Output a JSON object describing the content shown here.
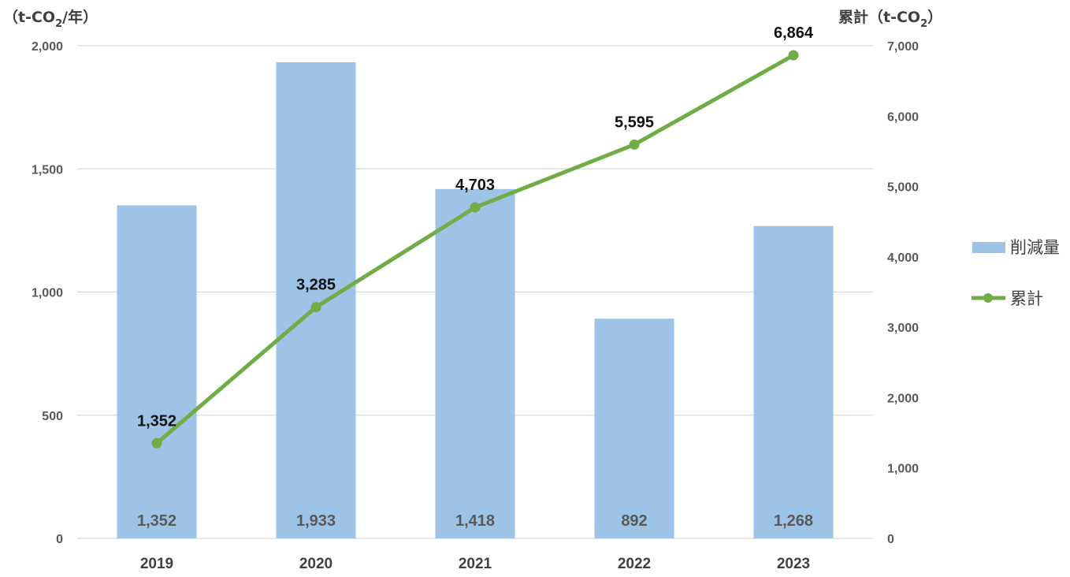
{
  "chart_data": {
    "type": "bar",
    "categories": [
      "2019",
      "2020",
      "2021",
      "2022",
      "2023"
    ],
    "series": [
      {
        "name": "削減量",
        "kind": "bar",
        "axis": "left",
        "values": [
          1352,
          1933,
          1418,
          892,
          1268
        ],
        "color": "#9DC3E6"
      },
      {
        "name": "累計",
        "kind": "line",
        "axis": "right",
        "values": [
          1352,
          3285,
          4703,
          5595,
          6864
        ],
        "color": "#70AD47"
      }
    ],
    "y_left": {
      "unit_label": {
        "prefix": "（t-CO",
        "sub": "2",
        "suffix": "/年）"
      },
      "range": [
        0,
        2000
      ],
      "ticks": [
        0,
        500,
        1000,
        1500,
        2000
      ],
      "tick_labels": [
        "0",
        "500",
        "1,000",
        "1,500",
        "2,000"
      ]
    },
    "y_right": {
      "unit_label": {
        "prefix": "累計（t-CO",
        "sub": "2",
        "suffix": "）"
      },
      "range": [
        0,
        7000
      ],
      "ticks": [
        0,
        1000,
        2000,
        3000,
        4000,
        5000,
        6000,
        7000
      ],
      "tick_labels": [
        "0",
        "1,000",
        "2,000",
        "3,000",
        "4,000",
        "5,000",
        "6,000",
        "7,000"
      ]
    },
    "bar_labels": [
      "1,352",
      "1,933",
      "1,418",
      "892",
      "1,268"
    ],
    "line_labels": [
      "1,352",
      "3,285",
      "4,703",
      "5,595",
      "6,864"
    ],
    "grid": true,
    "legend": {
      "position": "right",
      "items": [
        "削減量",
        "累計"
      ]
    }
  }
}
